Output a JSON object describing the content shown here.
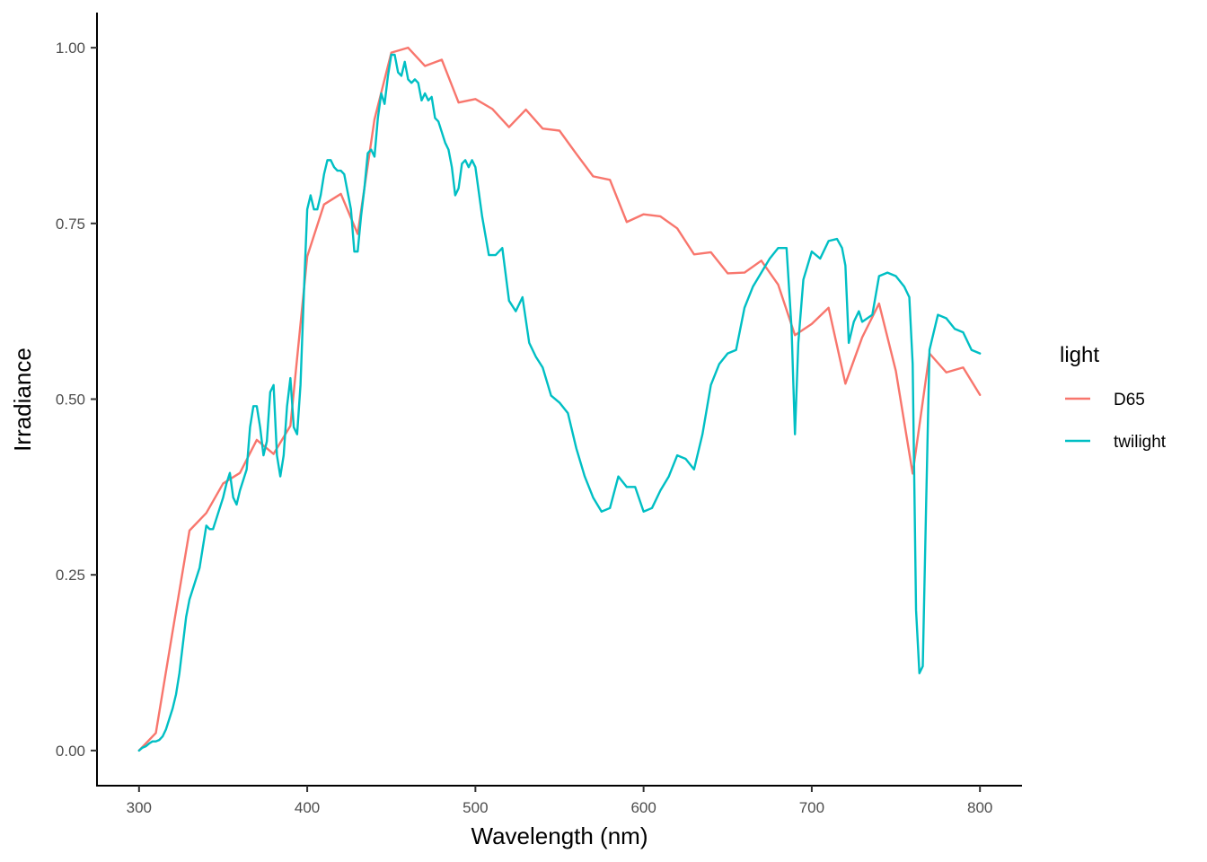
{
  "chart_data": {
    "type": "line",
    "title": "",
    "xlabel": "Wavelength (nm)",
    "ylabel": "Irradiance",
    "xlim": [
      275,
      825
    ],
    "ylim": [
      -0.05,
      1.05
    ],
    "x_ticks": [
      300,
      400,
      500,
      600,
      700,
      800
    ],
    "x_tick_labels": [
      "300",
      "400",
      "500",
      "600",
      "700",
      "800"
    ],
    "y_ticks": [
      0,
      0.25,
      0.5,
      0.75,
      1
    ],
    "y_tick_labels": [
      "0.00",
      "0.25",
      "0.50",
      "0.75",
      "1.00"
    ],
    "grid": false,
    "legend": {
      "title": "light",
      "placement": "right",
      "entries": [
        {
          "label": "D65",
          "color": "#F8766D"
        },
        {
          "label": "twilight",
          "color": "#00BFC4"
        }
      ]
    },
    "series": [
      {
        "name": "D65",
        "color": "#F8766D",
        "x": [
          300,
          310,
          320,
          330,
          340,
          350,
          360,
          370,
          380,
          390,
          400,
          410,
          420,
          430,
          440,
          450,
          460,
          470,
          480,
          490,
          500,
          510,
          520,
          530,
          540,
          550,
          560,
          570,
          580,
          590,
          600,
          610,
          620,
          630,
          640,
          650,
          660,
          670,
          680,
          690,
          700,
          710,
          720,
          730,
          740,
          750,
          760,
          770,
          780,
          790,
          800
        ],
        "values": [
          0.0,
          0.025,
          0.17,
          0.313,
          0.338,
          0.38,
          0.395,
          0.442,
          0.422,
          0.462,
          0.703,
          0.777,
          0.792,
          0.735,
          0.898,
          0.993,
          1.0,
          0.974,
          0.983,
          0.922,
          0.927,
          0.913,
          0.887,
          0.912,
          0.885,
          0.882,
          0.849,
          0.817,
          0.812,
          0.752,
          0.763,
          0.76,
          0.743,
          0.706,
          0.709,
          0.679,
          0.68,
          0.697,
          0.663,
          0.591,
          0.607,
          0.63,
          0.522,
          0.588,
          0.636,
          0.54,
          0.394,
          0.565,
          0.538,
          0.545,
          0.506
        ]
      },
      {
        "name": "twilight",
        "color": "#00BFC4",
        "x": [
          300,
          302,
          304,
          306,
          308,
          310,
          312,
          314,
          316,
          318,
          320,
          322,
          324,
          326,
          328,
          330,
          332,
          334,
          336,
          338,
          340,
          342,
          344,
          346,
          348,
          350,
          352,
          354,
          356,
          358,
          360,
          362,
          364,
          366,
          368,
          370,
          372,
          374,
          376,
          378,
          380,
          382,
          384,
          386,
          388,
          390,
          392,
          394,
          396,
          398,
          400,
          402,
          404,
          406,
          408,
          410,
          412,
          414,
          416,
          418,
          420,
          422,
          424,
          426,
          428,
          430,
          432,
          434,
          436,
          438,
          440,
          442,
          444,
          446,
          448,
          450,
          452,
          454,
          456,
          458,
          460,
          462,
          464,
          466,
          468,
          470,
          472,
          474,
          476,
          478,
          480,
          482,
          484,
          486,
          488,
          490,
          492,
          494,
          496,
          498,
          500,
          504,
          508,
          512,
          516,
          520,
          524,
          528,
          532,
          536,
          540,
          545,
          550,
          555,
          560,
          565,
          570,
          575,
          580,
          585,
          590,
          595,
          600,
          605,
          610,
          615,
          620,
          625,
          630,
          635,
          640,
          645,
          650,
          655,
          660,
          665,
          670,
          675,
          680,
          685,
          688,
          690,
          692,
          695,
          700,
          705,
          710,
          715,
          718,
          720,
          722,
          725,
          728,
          730,
          733,
          736,
          740,
          745,
          750,
          755,
          758,
          760,
          762,
          764,
          766,
          768,
          770,
          775,
          780,
          785,
          790,
          795,
          800
        ],
        "values": [
          0.0,
          0.004,
          0.006,
          0.01,
          0.013,
          0.013,
          0.015,
          0.02,
          0.03,
          0.045,
          0.06,
          0.08,
          0.11,
          0.15,
          0.19,
          0.215,
          0.23,
          0.245,
          0.26,
          0.29,
          0.32,
          0.315,
          0.315,
          0.33,
          0.345,
          0.36,
          0.38,
          0.395,
          0.36,
          0.35,
          0.37,
          0.385,
          0.4,
          0.46,
          0.49,
          0.49,
          0.46,
          0.42,
          0.44,
          0.51,
          0.52,
          0.42,
          0.39,
          0.42,
          0.49,
          0.53,
          0.46,
          0.45,
          0.52,
          0.65,
          0.77,
          0.79,
          0.77,
          0.77,
          0.79,
          0.82,
          0.84,
          0.84,
          0.83,
          0.825,
          0.825,
          0.82,
          0.795,
          0.77,
          0.71,
          0.71,
          0.76,
          0.8,
          0.85,
          0.855,
          0.845,
          0.9,
          0.935,
          0.92,
          0.96,
          0.99,
          0.99,
          0.965,
          0.96,
          0.98,
          0.955,
          0.95,
          0.955,
          0.95,
          0.925,
          0.935,
          0.925,
          0.93,
          0.9,
          0.895,
          0.88,
          0.865,
          0.855,
          0.83,
          0.79,
          0.8,
          0.835,
          0.84,
          0.83,
          0.84,
          0.83,
          0.76,
          0.705,
          0.705,
          0.715,
          0.64,
          0.625,
          0.645,
          0.58,
          0.56,
          0.545,
          0.505,
          0.495,
          0.48,
          0.43,
          0.39,
          0.36,
          0.34,
          0.345,
          0.39,
          0.375,
          0.375,
          0.34,
          0.345,
          0.37,
          0.39,
          0.42,
          0.415,
          0.4,
          0.45,
          0.52,
          0.55,
          0.565,
          0.57,
          0.63,
          0.66,
          0.68,
          0.7,
          0.715,
          0.715,
          0.6,
          0.45,
          0.58,
          0.67,
          0.71,
          0.7,
          0.725,
          0.728,
          0.715,
          0.69,
          0.58,
          0.61,
          0.625,
          0.61,
          0.615,
          0.62,
          0.675,
          0.68,
          0.675,
          0.66,
          0.645,
          0.55,
          0.2,
          0.11,
          0.12,
          0.35,
          0.57,
          0.62,
          0.615,
          0.6,
          0.595,
          0.57,
          0.565
        ]
      }
    ]
  }
}
